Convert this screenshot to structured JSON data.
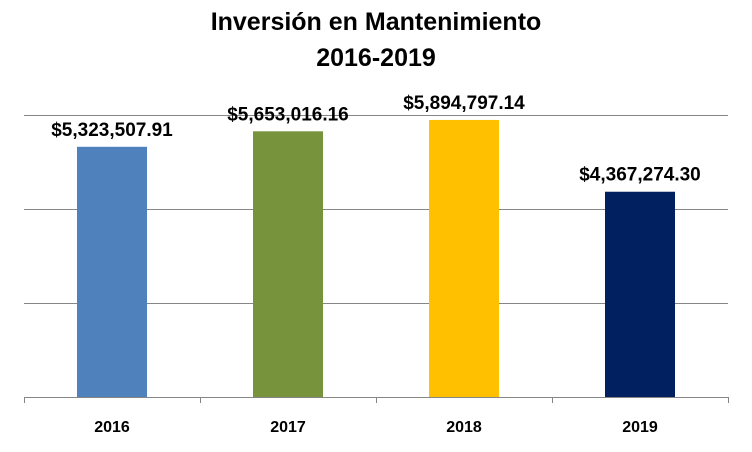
{
  "chart_data": {
    "type": "bar",
    "title": "Inversión en Mantenimiento",
    "subtitle": "2016-2019",
    "categories": [
      "2016",
      "2017",
      "2018",
      "2019"
    ],
    "values": [
      5323507.91,
      5653016.16,
      5894797.14,
      4367274.3
    ],
    "data_labels": [
      "$5,323,507.91",
      "$5,653,016.16",
      "$5,894,797.14",
      "$4,367,274.30"
    ],
    "colors": [
      "#4f81bd",
      "#77933c",
      "#ffc000",
      "#002060"
    ],
    "ylim": [
      0,
      8000000
    ],
    "y_gridline_step": 2000000,
    "grid": true,
    "xlabel": "",
    "ylabel": ""
  }
}
